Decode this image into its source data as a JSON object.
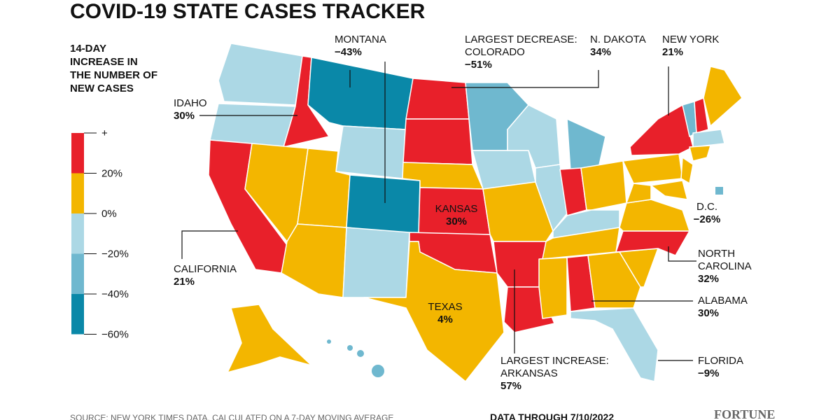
{
  "title": "COVID-19 STATE CASES TRACKER",
  "legend": {
    "title": "14-DAY INCREASE IN THE NUMBER OF NEW CASES",
    "bins": [
      {
        "label": "+",
        "color": "#e8202a"
      },
      {
        "label": "20%",
        "color": "#f3b600"
      },
      {
        "label": "0%",
        "color": "#acd8e5"
      },
      {
        "label": "−20%",
        "color": "#6fb8cf"
      },
      {
        "label": "−40%",
        "color": "#0a88a8"
      }
    ],
    "bottom_label": "−60%"
  },
  "callouts": [
    {
      "name": "MONTANA",
      "value": "−43%"
    },
    {
      "name": "LARGEST DECREASE: COLORADO",
      "value": "−51%"
    },
    {
      "name": "N. DAKOTA",
      "value": "34%"
    },
    {
      "name": "NEW YORK",
      "value": "21%"
    },
    {
      "name": "IDAHO",
      "value": "30%"
    },
    {
      "name": "KANSAS",
      "value": "30%"
    },
    {
      "name": "D.C.",
      "value": "−26%"
    },
    {
      "name": "CALIFORNIA",
      "value": "21%"
    },
    {
      "name": "NORTH CAROLINA",
      "value": "32%"
    },
    {
      "name": "TEXAS",
      "value": "4%"
    },
    {
      "name": "ALABAMA",
      "value": "30%"
    },
    {
      "name": "LARGEST INCREASE: ARKANSAS",
      "value": "57%"
    },
    {
      "name": "FLORIDA",
      "value": "−9%"
    }
  ],
  "footer": {
    "source": "SOURCE: NEW YORK TIMES DATA, CALCULATED ON A 7-DAY MOVING AVERAGE",
    "date": "DATA THROUGH 7/10/2022",
    "brand": "FORTUNE"
  }
}
